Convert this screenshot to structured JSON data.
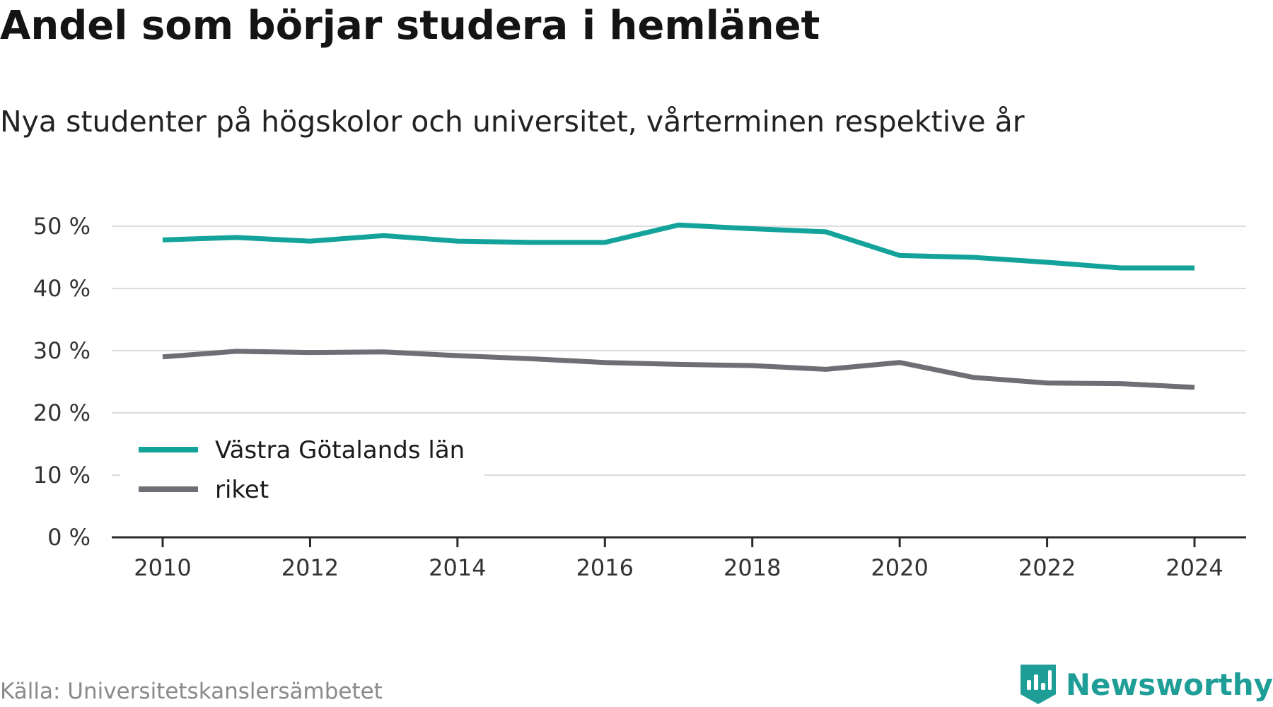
{
  "title": "Andel som börjar studera i hemlänet",
  "subtitle": "Nya studenter på högskolor och universitet, vårterminen respektive år",
  "source": "Källa: Universitetskanslersämbetet",
  "brand": {
    "name": "Newsworthy",
    "icon": "newsworthy-logo-icon",
    "color": "#1f9e97"
  },
  "chart_data": {
    "type": "line",
    "title": "Andel som börjar studera i hemlänet",
    "subtitle": "Nya studenter på högskolor och universitet, vårterminen respektive år",
    "xlabel": "",
    "ylabel": "",
    "x": [
      2010,
      2011,
      2012,
      2013,
      2014,
      2015,
      2016,
      2017,
      2018,
      2019,
      2020,
      2021,
      2022,
      2023,
      2024
    ],
    "x_ticks": [
      "2010",
      "2012",
      "2014",
      "2016",
      "2018",
      "2020",
      "2022",
      "2024"
    ],
    "y_ticks": [
      "0 %",
      "10 %",
      "20 %",
      "30 %",
      "40 %",
      "50 %"
    ],
    "ylim": [
      0,
      50
    ],
    "grid": true,
    "legend_position": "bottom-left",
    "series": [
      {
        "name": "Västra Götalands län",
        "color": "#13a39b",
        "values": [
          47.8,
          48.2,
          47.6,
          48.5,
          47.6,
          47.4,
          47.4,
          50.2,
          49.6,
          49.1,
          45.3,
          45.0,
          44.2,
          43.3,
          43.3
        ]
      },
      {
        "name": "riket",
        "color": "#6f6e75",
        "values": [
          29.0,
          29.9,
          29.7,
          29.8,
          29.2,
          28.7,
          28.1,
          27.8,
          27.6,
          27.0,
          28.1,
          25.7,
          24.8,
          24.7,
          24.1
        ]
      }
    ]
  }
}
